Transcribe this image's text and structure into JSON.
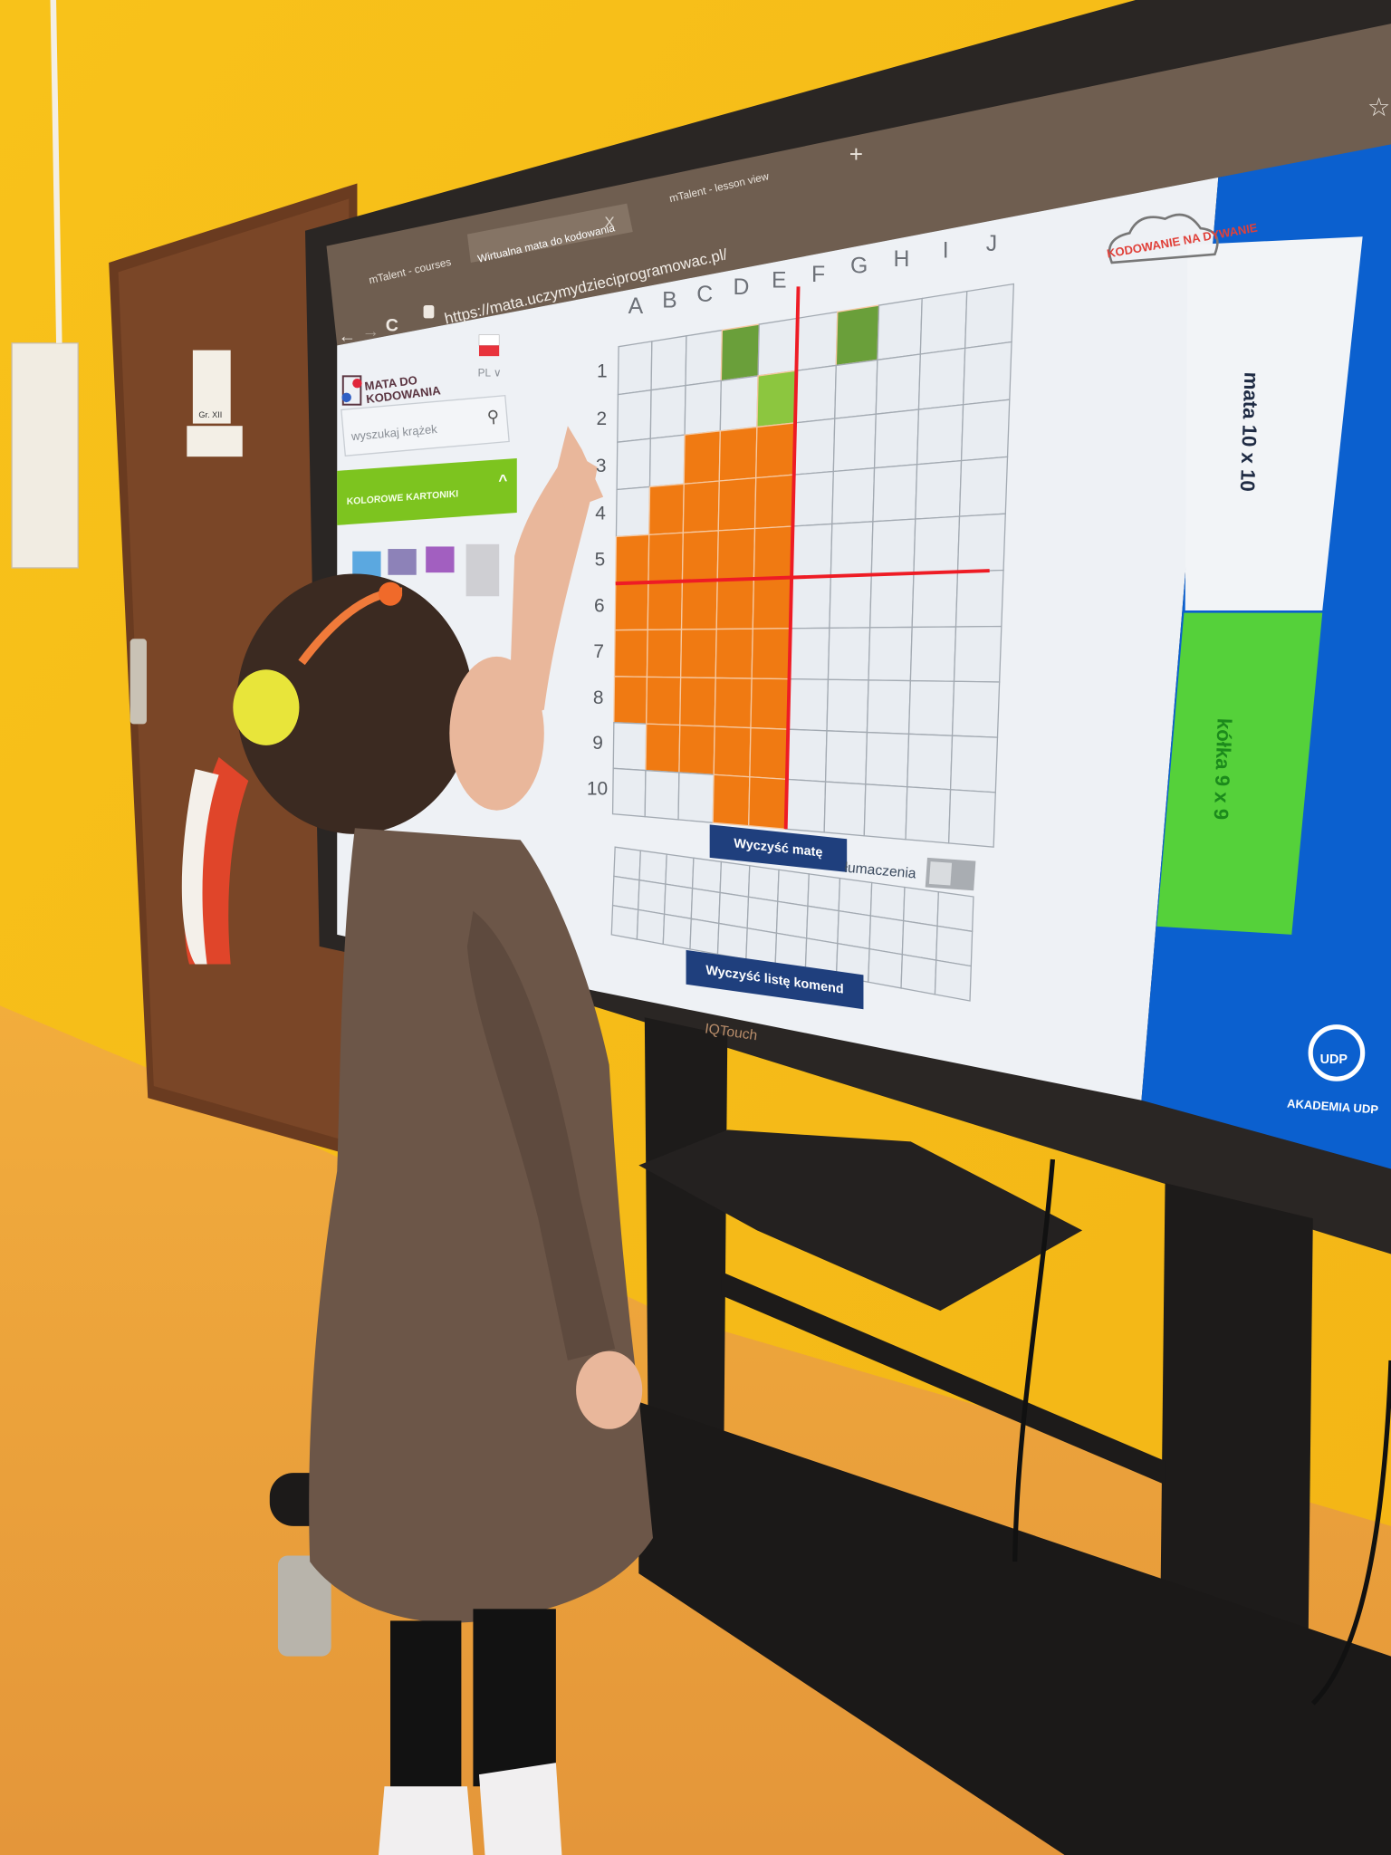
{
  "browser": {
    "tabs": [
      {
        "label": "mTalent - courses",
        "active": false
      },
      {
        "label": "Wirtualna mata do kodowania",
        "active": true
      },
      {
        "label": "mTalent - lesson view",
        "active": false
      }
    ],
    "close_tab_glyph": "X",
    "new_tab_glyph": "+",
    "url": "https://mata.uczymydzieciprogramowac.pl/",
    "back_glyph": "←",
    "forward_glyph": "→",
    "reload_glyph": "C",
    "bookmark_glyph": "☆"
  },
  "sidebar": {
    "logo_line1": "MATA DO",
    "logo_line2": "KODOWANIA",
    "language": "PL",
    "language_chevron": "∨",
    "search_placeholder": "wyszukaj krążek",
    "search_icon": "⚲",
    "section_title": "KOLOROWE KARTONIKI",
    "section_chevron": "^",
    "swatches": [
      "#5ba8e0",
      "#8d82b8",
      "#a25fc0",
      "#cfcfd3"
    ]
  },
  "mat": {
    "columns": [
      "A",
      "B",
      "C",
      "D",
      "E",
      "F",
      "G",
      "H",
      "I",
      "J"
    ],
    "rows": [
      "1",
      "2",
      "3",
      "4",
      "5",
      "6",
      "7",
      "8",
      "9",
      "10"
    ],
    "cells": [
      {
        "col": "D",
        "row": "1",
        "color": "#6a9f3a"
      },
      {
        "col": "G",
        "row": "1",
        "color": "#6a9f3a"
      },
      {
        "col": "E",
        "row": "2",
        "color": "#8cc63f"
      },
      {
        "col": "C",
        "row": "3",
        "color": "#f07a12"
      },
      {
        "col": "D",
        "row": "3",
        "color": "#f07a12"
      },
      {
        "col": "E",
        "row": "3",
        "color": "#f07a12"
      },
      {
        "col": "B",
        "row": "4",
        "color": "#f07a12"
      },
      {
        "col": "C",
        "row": "4",
        "color": "#f07a12"
      },
      {
        "col": "D",
        "row": "4",
        "color": "#f07a12"
      },
      {
        "col": "E",
        "row": "4",
        "color": "#f07a12"
      },
      {
        "col": "A",
        "row": "5",
        "color": "#f07a12"
      },
      {
        "col": "B",
        "row": "5",
        "color": "#f07a12"
      },
      {
        "col": "C",
        "row": "5",
        "color": "#f07a12"
      },
      {
        "col": "D",
        "row": "5",
        "color": "#f07a12"
      },
      {
        "col": "E",
        "row": "5",
        "color": "#f07a12"
      },
      {
        "col": "A",
        "row": "6",
        "color": "#f07a12"
      },
      {
        "col": "B",
        "row": "6",
        "color": "#f07a12"
      },
      {
        "col": "C",
        "row": "6",
        "color": "#f07a12"
      },
      {
        "col": "D",
        "row": "6",
        "color": "#f07a12"
      },
      {
        "col": "E",
        "row": "6",
        "color": "#f07a12"
      },
      {
        "col": "A",
        "row": "7",
        "color": "#f07a12"
      },
      {
        "col": "B",
        "row": "7",
        "color": "#f07a12"
      },
      {
        "col": "C",
        "row": "7",
        "color": "#f07a12"
      },
      {
        "col": "D",
        "row": "7",
        "color": "#f07a12"
      },
      {
        "col": "E",
        "row": "7",
        "color": "#f07a12"
      },
      {
        "col": "A",
        "row": "8",
        "color": "#f07a12"
      },
      {
        "col": "B",
        "row": "8",
        "color": "#f07a12"
      },
      {
        "col": "C",
        "row": "8",
        "color": "#f07a12"
      },
      {
        "col": "D",
        "row": "8",
        "color": "#f07a12"
      },
      {
        "col": "E",
        "row": "8",
        "color": "#f07a12"
      },
      {
        "col": "B",
        "row": "9",
        "color": "#f07a12"
      },
      {
        "col": "C",
        "row": "9",
        "color": "#f07a12"
      },
      {
        "col": "D",
        "row": "9",
        "color": "#f07a12"
      },
      {
        "col": "E",
        "row": "9",
        "color": "#f07a12"
      },
      {
        "col": "D",
        "row": "10",
        "color": "#f07a12"
      },
      {
        "col": "E",
        "row": "10",
        "color": "#f07a12"
      }
    ],
    "empty_color": "#e9edf2",
    "axis_line_color": "#ee1c25",
    "clear_button": "Wyczyść matę",
    "translations_label": "łumaczenia",
    "translations_on": false
  },
  "commands": {
    "columns": 12,
    "rows": 3,
    "clear_button": "Wyczyść listę komend"
  },
  "right_panel": {
    "logo": "KODOWANIE NA DYWANIE",
    "cards": [
      {
        "label": "mata 10 x 10",
        "color": "#f2f4f7"
      },
      {
        "label": "kółka 9 x 9",
        "color": "#55d13a"
      }
    ],
    "brand_badge": "UDP",
    "brand_name": "AKADEMIA UDP",
    "background": "#0b60cf"
  },
  "room": {
    "door_sign": "Gr. XII",
    "monitor_brand": "IQTouch"
  }
}
